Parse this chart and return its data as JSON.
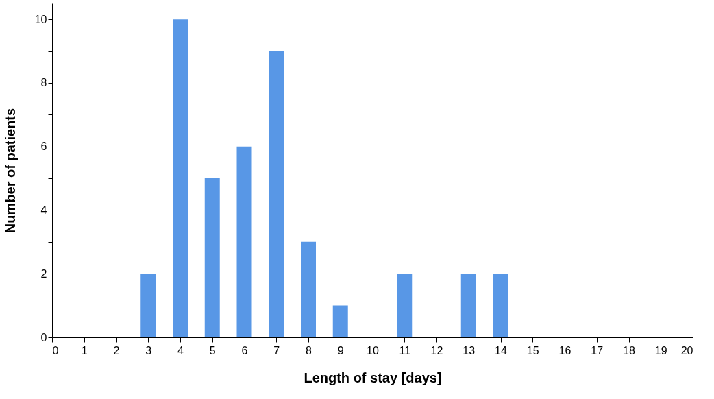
{
  "chart_data": {
    "type": "bar",
    "xlabel": "Length of stay [days]",
    "ylabel": "Number of patients",
    "x": [
      3,
      4,
      5,
      6,
      7,
      8,
      9,
      11,
      13,
      14
    ],
    "series": [
      {
        "color": "#5897e6",
        "values": [
          2,
          10,
          5,
          6,
          9,
          3,
          1,
          2,
          2,
          2
        ]
      }
    ],
    "xlim": [
      0,
      20
    ],
    "xticks": [
      0,
      1,
      2,
      3,
      4,
      5,
      6,
      7,
      8,
      9,
      10,
      11,
      12,
      13,
      14,
      15,
      16,
      17,
      18,
      19,
      20
    ],
    "ylim": [
      0,
      10.5
    ],
    "yticks": [
      0,
      {
        "value": 1,
        "label": null
      },
      2,
      {
        "value": 3,
        "label": null
      },
      4,
      {
        "value": 5,
        "label": null
      },
      6,
      {
        "value": 7,
        "label": null
      },
      8,
      {
        "value": 9,
        "label": null
      },
      10
    ],
    "grid": false
  }
}
